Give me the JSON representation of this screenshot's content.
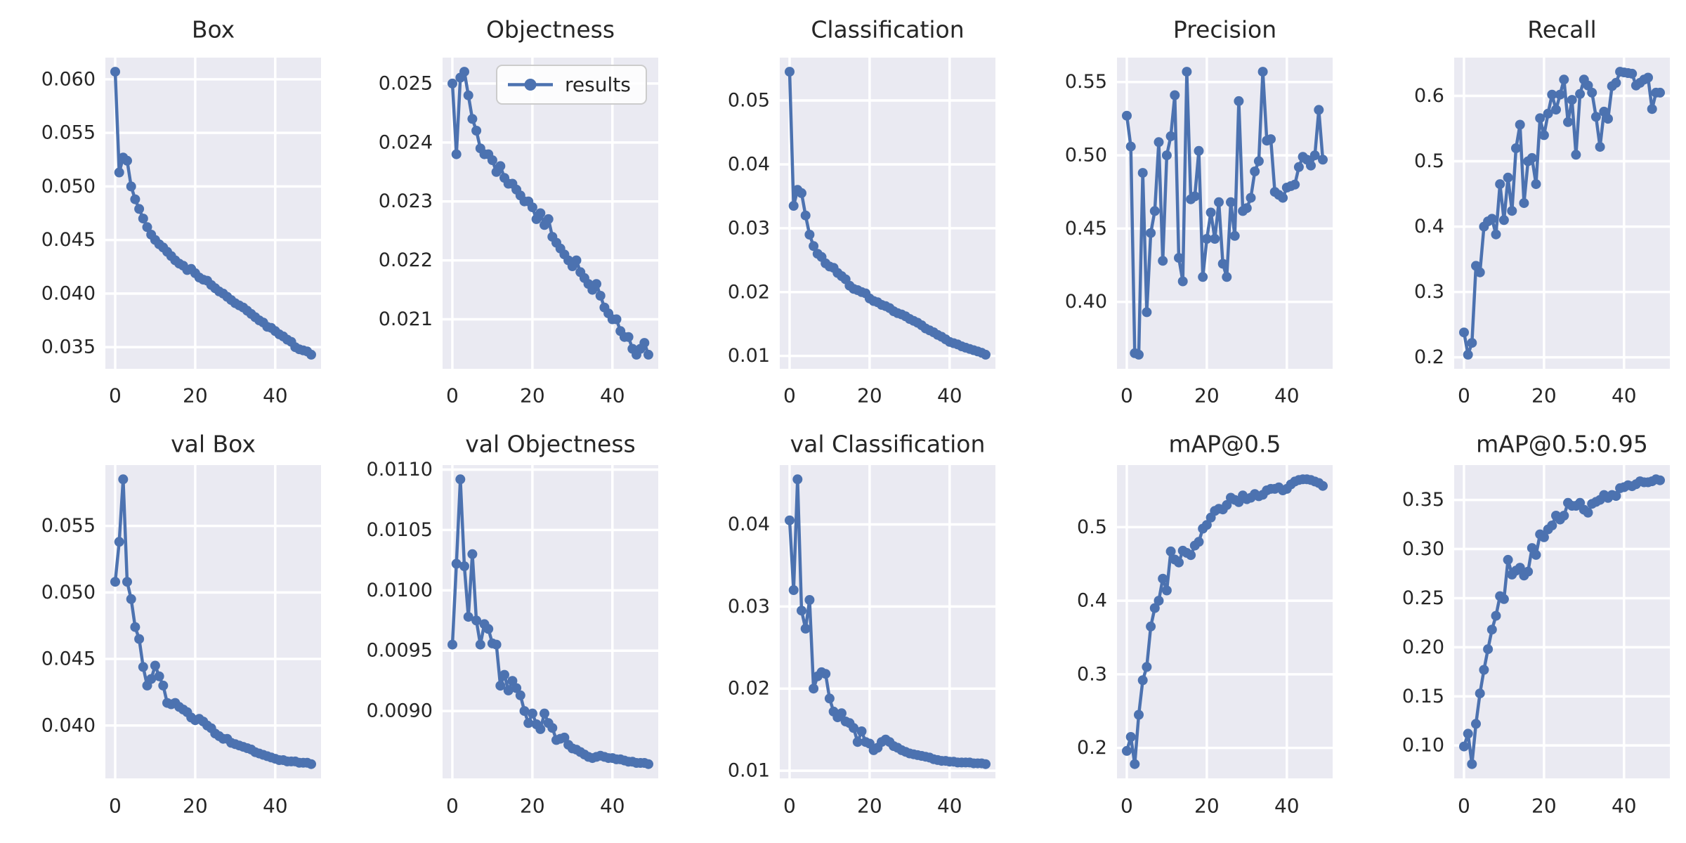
{
  "figure": {
    "kind": "training-results-grid",
    "background": "#ffffff",
    "rows": 2,
    "cols": 5
  },
  "style": {
    "line_color": "#4c72b0",
    "marker_color": "#4c72b0",
    "axes_background": "#eaeaf2",
    "grid_color": "#ffffff",
    "text_color": "#262626",
    "legend_background": "#ffffff",
    "legend_border": "#cccccc"
  },
  "x_axis": {
    "ticks": [
      0,
      20,
      40
    ],
    "n_points": 50,
    "x_start": 0
  },
  "legend": {
    "label": "results",
    "location": "upper-right-of-objectness"
  },
  "chart_data": [
    {
      "type": "line",
      "title": "Box",
      "series_name": "results",
      "legend": null,
      "yticks": [
        0.035,
        0.04,
        0.045,
        0.05,
        0.055,
        0.06
      ],
      "ytick_decimals": 3,
      "values": [
        0.0607,
        0.0513,
        0.0527,
        0.0524,
        0.05,
        0.0488,
        0.0479,
        0.047,
        0.0462,
        0.0455,
        0.045,
        0.0446,
        0.0443,
        0.0439,
        0.0435,
        0.0431,
        0.0428,
        0.0426,
        0.0422,
        0.0423,
        0.0419,
        0.0415,
        0.0413,
        0.0412,
        0.0408,
        0.0405,
        0.0402,
        0.04,
        0.0397,
        0.0394,
        0.0391,
        0.0389,
        0.0387,
        0.0384,
        0.0381,
        0.0378,
        0.0375,
        0.0373,
        0.0369,
        0.0368,
        0.0365,
        0.0362,
        0.036,
        0.0357,
        0.0355,
        0.035,
        0.0348,
        0.0347,
        0.0346,
        0.0343
      ]
    },
    {
      "type": "line",
      "title": "Objectness",
      "series_name": "results",
      "legend": "results",
      "yticks": [
        0.021,
        0.022,
        0.023,
        0.024,
        0.025
      ],
      "ytick_decimals": 3,
      "values": [
        0.025,
        0.0238,
        0.0251,
        0.0252,
        0.0248,
        0.0244,
        0.0242,
        0.0239,
        0.0238,
        0.0238,
        0.0237,
        0.0235,
        0.0236,
        0.0234,
        0.0233,
        0.0233,
        0.0232,
        0.0231,
        0.023,
        0.023,
        0.0229,
        0.0227,
        0.0228,
        0.0226,
        0.0227,
        0.0224,
        0.0223,
        0.0222,
        0.0221,
        0.022,
        0.0219,
        0.022,
        0.0218,
        0.0217,
        0.0216,
        0.0215,
        0.0216,
        0.0214,
        0.0212,
        0.0211,
        0.021,
        0.021,
        0.0208,
        0.0207,
        0.0207,
        0.0205,
        0.0204,
        0.0205,
        0.0206,
        0.0204
      ]
    },
    {
      "type": "line",
      "title": "Classification",
      "series_name": "results",
      "legend": null,
      "yticks": [
        0.01,
        0.02,
        0.03,
        0.04,
        0.05
      ],
      "ytick_decimals": 2,
      "values": [
        0.0545,
        0.0335,
        0.036,
        0.0355,
        0.032,
        0.029,
        0.0272,
        0.026,
        0.0255,
        0.0245,
        0.024,
        0.0238,
        0.023,
        0.0225,
        0.022,
        0.021,
        0.0205,
        0.0203,
        0.02,
        0.0198,
        0.019,
        0.0186,
        0.0184,
        0.018,
        0.0178,
        0.0175,
        0.017,
        0.0167,
        0.0165,
        0.0162,
        0.0158,
        0.0155,
        0.0152,
        0.0148,
        0.0143,
        0.014,
        0.0137,
        0.0133,
        0.013,
        0.0126,
        0.0122,
        0.012,
        0.0118,
        0.0115,
        0.0113,
        0.0111,
        0.0109,
        0.0107,
        0.0105,
        0.0102
      ]
    },
    {
      "type": "line",
      "title": "Precision",
      "series_name": "results",
      "legend": null,
      "yticks": [
        0.4,
        0.45,
        0.5,
        0.55
      ],
      "ytick_decimals": 2,
      "values": [
        0.527,
        0.506,
        0.365,
        0.364,
        0.488,
        0.393,
        0.447,
        0.462,
        0.509,
        0.428,
        0.5,
        0.513,
        0.541,
        0.43,
        0.414,
        0.557,
        0.47,
        0.472,
        0.503,
        0.417,
        0.443,
        0.461,
        0.443,
        0.468,
        0.426,
        0.417,
        0.468,
        0.445,
        0.537,
        0.462,
        0.464,
        0.471,
        0.489,
        0.496,
        0.557,
        0.51,
        0.511,
        0.475,
        0.473,
        0.471,
        0.478,
        0.479,
        0.48,
        0.492,
        0.499,
        0.497,
        0.493,
        0.5,
        0.531,
        0.497
      ]
    },
    {
      "type": "line",
      "title": "Recall",
      "series_name": "results",
      "legend": null,
      "yticks": [
        0.2,
        0.3,
        0.4,
        0.5,
        0.6
      ],
      "ytick_decimals": 1,
      "values": [
        0.238,
        0.204,
        0.222,
        0.34,
        0.33,
        0.4,
        0.408,
        0.412,
        0.388,
        0.465,
        0.41,
        0.475,
        0.424,
        0.52,
        0.556,
        0.436,
        0.5,
        0.505,
        0.465,
        0.566,
        0.54,
        0.573,
        0.602,
        0.579,
        0.602,
        0.625,
        0.56,
        0.594,
        0.51,
        0.603,
        0.625,
        0.616,
        0.605,
        0.568,
        0.522,
        0.576,
        0.565,
        0.615,
        0.62,
        0.637,
        0.636,
        0.635,
        0.634,
        0.616,
        0.62,
        0.625,
        0.628,
        0.58,
        0.605,
        0.605
      ]
    },
    {
      "type": "line",
      "title": "val Box",
      "series_name": "results",
      "legend": null,
      "yticks": [
        0.04,
        0.045,
        0.05,
        0.055
      ],
      "ytick_decimals": 3,
      "values": [
        0.0508,
        0.0538,
        0.0585,
        0.0508,
        0.0495,
        0.0474,
        0.0465,
        0.0444,
        0.043,
        0.0435,
        0.0445,
        0.0437,
        0.043,
        0.0417,
        0.0416,
        0.0417,
        0.0414,
        0.0412,
        0.041,
        0.0406,
        0.0404,
        0.0405,
        0.0403,
        0.04,
        0.0398,
        0.0394,
        0.0392,
        0.039,
        0.039,
        0.0387,
        0.0386,
        0.0385,
        0.0384,
        0.0383,
        0.0382,
        0.038,
        0.0379,
        0.0378,
        0.0377,
        0.0376,
        0.0375,
        0.0374,
        0.0374,
        0.0373,
        0.0373,
        0.0373,
        0.0372,
        0.0372,
        0.0372,
        0.0371
      ]
    },
    {
      "type": "line",
      "title": "val Objectness",
      "series_name": "results",
      "legend": null,
      "yticks": [
        0.009,
        0.0095,
        0.01,
        0.0105,
        0.011
      ],
      "ytick_decimals": 4,
      "values": [
        0.00955,
        0.01022,
        0.01092,
        0.0102,
        0.00978,
        0.0103,
        0.00975,
        0.00955,
        0.00972,
        0.00968,
        0.00956,
        0.00955,
        0.00921,
        0.0093,
        0.00917,
        0.00925,
        0.00919,
        0.00913,
        0.009,
        0.0089,
        0.00898,
        0.00889,
        0.00885,
        0.00898,
        0.0089,
        0.00886,
        0.00876,
        0.00877,
        0.00878,
        0.00872,
        0.00869,
        0.00868,
        0.00866,
        0.00864,
        0.00862,
        0.00861,
        0.00862,
        0.00863,
        0.00862,
        0.00861,
        0.00861,
        0.0086,
        0.0086,
        0.00859,
        0.00858,
        0.00858,
        0.00857,
        0.00857,
        0.00857,
        0.00856
      ]
    },
    {
      "type": "line",
      "title": "val Classification",
      "series_name": "results",
      "legend": null,
      "yticks": [
        0.01,
        0.02,
        0.03,
        0.04
      ],
      "ytick_decimals": 2,
      "values": [
        0.0405,
        0.032,
        0.0455,
        0.0295,
        0.0273,
        0.0308,
        0.02,
        0.0215,
        0.022,
        0.0218,
        0.0188,
        0.0172,
        0.0165,
        0.017,
        0.016,
        0.0158,
        0.0152,
        0.0135,
        0.0148,
        0.0135,
        0.0133,
        0.0125,
        0.0128,
        0.0135,
        0.0138,
        0.0135,
        0.013,
        0.0128,
        0.0125,
        0.0123,
        0.0121,
        0.012,
        0.0119,
        0.0118,
        0.0117,
        0.0116,
        0.0114,
        0.0113,
        0.0112,
        0.0112,
        0.0111,
        0.0111,
        0.011,
        0.011,
        0.011,
        0.011,
        0.0109,
        0.0109,
        0.0109,
        0.0108
      ]
    },
    {
      "type": "line",
      "title": "mAP@0.5",
      "series_name": "results",
      "legend": null,
      "yticks": [
        0.2,
        0.3,
        0.4,
        0.5
      ],
      "ytick_decimals": 1,
      "values": [
        0.196,
        0.215,
        0.178,
        0.245,
        0.292,
        0.31,
        0.365,
        0.39,
        0.4,
        0.43,
        0.414,
        0.467,
        0.456,
        0.452,
        0.468,
        0.465,
        0.462,
        0.475,
        0.48,
        0.498,
        0.503,
        0.513,
        0.522,
        0.525,
        0.524,
        0.53,
        0.54,
        0.537,
        0.534,
        0.543,
        0.538,
        0.54,
        0.545,
        0.542,
        0.544,
        0.55,
        0.552,
        0.552,
        0.554,
        0.55,
        0.552,
        0.558,
        0.562,
        0.564,
        0.565,
        0.565,
        0.564,
        0.562,
        0.56,
        0.556
      ]
    },
    {
      "type": "line",
      "title": "mAP@0.5:0.95",
      "series_name": "results",
      "legend": null,
      "yticks": [
        0.1,
        0.15,
        0.2,
        0.25,
        0.3,
        0.35
      ],
      "ytick_decimals": 2,
      "values": [
        0.099,
        0.112,
        0.081,
        0.122,
        0.153,
        0.177,
        0.198,
        0.218,
        0.232,
        0.252,
        0.249,
        0.289,
        0.274,
        0.278,
        0.281,
        0.273,
        0.277,
        0.301,
        0.294,
        0.315,
        0.312,
        0.32,
        0.324,
        0.334,
        0.33,
        0.334,
        0.347,
        0.344,
        0.344,
        0.347,
        0.34,
        0.337,
        0.346,
        0.348,
        0.35,
        0.355,
        0.352,
        0.355,
        0.354,
        0.362,
        0.363,
        0.365,
        0.364,
        0.366,
        0.369,
        0.368,
        0.368,
        0.369,
        0.371,
        0.37
      ]
    }
  ]
}
